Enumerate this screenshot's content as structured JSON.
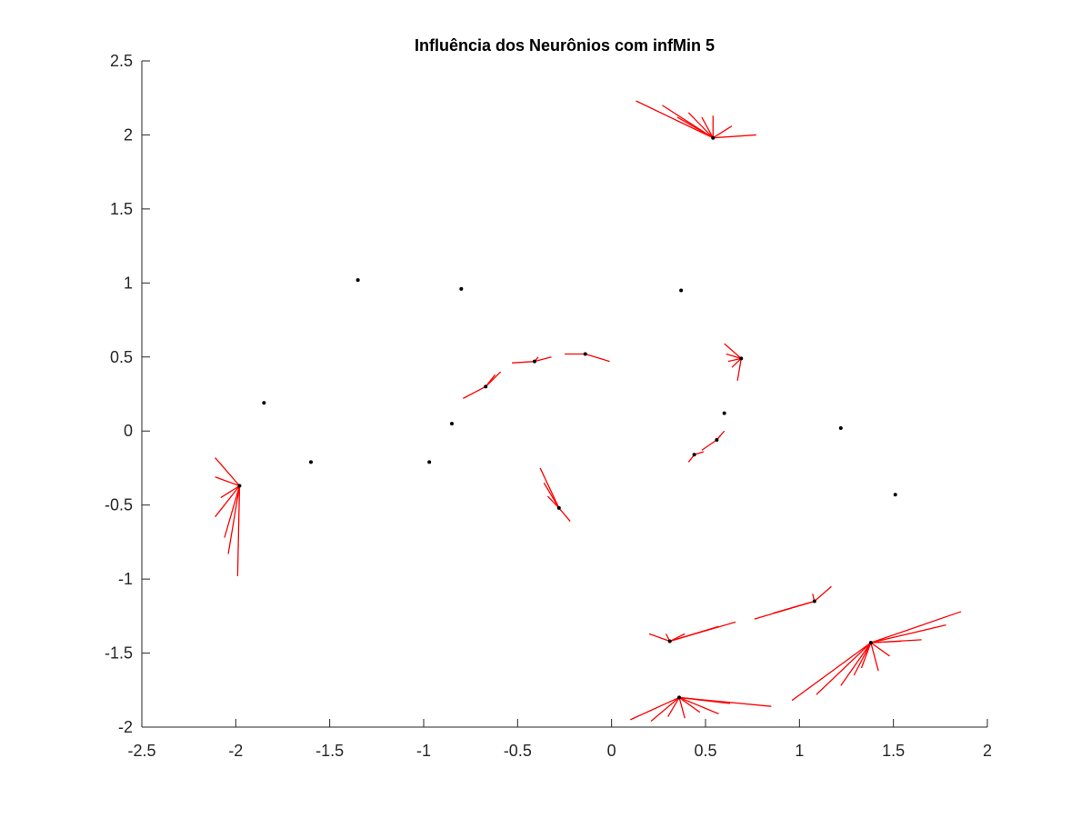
{
  "chart_data": {
    "type": "scatter",
    "title": "Influência dos Neurônios com infMin 5",
    "xlim": [
      -2.5,
      2
    ],
    "ylim": [
      -2,
      2.5
    ],
    "xticks": [
      "-2.5",
      "-2",
      "-1.5",
      "-1",
      "-0.5",
      "0",
      "0.5",
      "1",
      "1.5",
      "2"
    ],
    "yticks": [
      "2.5",
      "2",
      "1.5",
      "1",
      "0.5",
      "0",
      "-0.5",
      "-1",
      "-1.5",
      "-2"
    ],
    "grid": false,
    "colors": {
      "neuron": "#000000",
      "influence": "#ff0000",
      "axis": "#262626"
    },
    "neurons": [
      {
        "x": 0.54,
        "y": 1.98
      },
      {
        "x": -1.35,
        "y": 1.02
      },
      {
        "x": -0.8,
        "y": 0.96
      },
      {
        "x": 0.37,
        "y": 0.95
      },
      {
        "x": -0.41,
        "y": 0.47
      },
      {
        "x": -0.14,
        "y": 0.52
      },
      {
        "x": 0.69,
        "y": 0.49
      },
      {
        "x": -0.67,
        "y": 0.3
      },
      {
        "x": -1.85,
        "y": 0.19
      },
      {
        "x": 0.6,
        "y": 0.12
      },
      {
        "x": -0.85,
        "y": 0.05
      },
      {
        "x": 1.22,
        "y": 0.02
      },
      {
        "x": 0.56,
        "y": -0.06
      },
      {
        "x": 0.44,
        "y": -0.16
      },
      {
        "x": -1.6,
        "y": -0.21
      },
      {
        "x": -0.97,
        "y": -0.21
      },
      {
        "x": -1.98,
        "y": -0.37
      },
      {
        "x": -0.28,
        "y": -0.52
      },
      {
        "x": 1.51,
        "y": -0.43
      },
      {
        "x": 1.08,
        "y": -1.15
      },
      {
        "x": 0.31,
        "y": -1.42
      },
      {
        "x": 1.38,
        "y": -1.43
      },
      {
        "x": 0.36,
        "y": -1.8
      }
    ],
    "influence_groups": [
      {
        "center": {
          "x": 0.54,
          "y": 1.98
        },
        "ends": [
          [
            0.13,
            2.23
          ],
          [
            0.27,
            2.2
          ],
          [
            0.35,
            2.12
          ],
          [
            0.41,
            2.15
          ],
          [
            0.48,
            2.12
          ],
          [
            0.54,
            2.13
          ],
          [
            0.64,
            2.06
          ],
          [
            0.77,
            2.0
          ]
        ]
      },
      {
        "center": {
          "x": -1.98,
          "y": -0.37
        },
        "ends": [
          [
            -2.11,
            -0.18
          ],
          [
            -2.11,
            -0.31
          ],
          [
            -2.08,
            -0.45
          ],
          [
            -2.11,
            -0.58
          ],
          [
            -2.06,
            -0.72
          ],
          [
            -2.04,
            -0.83
          ],
          [
            -1.99,
            -0.98
          ]
        ]
      },
      {
        "center": {
          "x": -0.67,
          "y": 0.3
        },
        "ends": [
          [
            -0.79,
            0.22
          ],
          [
            -0.59,
            0.4
          ],
          [
            -0.62,
            0.38
          ]
        ]
      },
      {
        "center": {
          "x": -0.41,
          "y": 0.47
        },
        "ends": [
          [
            -0.53,
            0.46
          ],
          [
            -0.32,
            0.5
          ],
          [
            -0.39,
            0.5
          ]
        ]
      },
      {
        "center": {
          "x": -0.14,
          "y": 0.52
        },
        "ends": [
          [
            -0.25,
            0.52
          ],
          [
            -0.01,
            0.47
          ]
        ]
      },
      {
        "center": {
          "x": 0.69,
          "y": 0.49
        },
        "ends": [
          [
            0.6,
            0.59
          ],
          [
            0.61,
            0.52
          ],
          [
            0.62,
            0.47
          ],
          [
            0.64,
            0.43
          ],
          [
            0.67,
            0.34
          ]
        ]
      },
      {
        "center": {
          "x": 0.56,
          "y": -0.06
        },
        "ends": [
          [
            0.48,
            -0.13
          ],
          [
            0.6,
            0.0
          ],
          [
            0.58,
            -0.03
          ]
        ]
      },
      {
        "center": {
          "x": 0.44,
          "y": -0.16
        },
        "ends": [
          [
            0.41,
            -0.21
          ],
          [
            0.49,
            -0.14
          ]
        ]
      },
      {
        "center": {
          "x": -0.28,
          "y": -0.52
        },
        "ends": [
          [
            -0.38,
            -0.25
          ],
          [
            -0.36,
            -0.35
          ],
          [
            -0.34,
            -0.44
          ],
          [
            -0.22,
            -0.61
          ]
        ]
      },
      {
        "center": {
          "x": 1.08,
          "y": -1.15
        },
        "ends": [
          [
            0.76,
            -1.27
          ],
          [
            0.86,
            -1.23
          ],
          [
            1.07,
            -1.1
          ],
          [
            1.17,
            -1.05
          ]
        ]
      },
      {
        "center": {
          "x": 0.31,
          "y": -1.42
        },
        "ends": [
          [
            0.2,
            -1.37
          ],
          [
            0.29,
            -1.37
          ],
          [
            0.39,
            -1.37
          ],
          [
            0.57,
            -1.32
          ],
          [
            0.66,
            -1.29
          ]
        ]
      },
      {
        "center": {
          "x": 1.38,
          "y": -1.43
        },
        "ends": [
          [
            0.96,
            -1.82
          ],
          [
            1.09,
            -1.78
          ],
          [
            1.22,
            -1.72
          ],
          [
            1.29,
            -1.65
          ],
          [
            1.33,
            -1.6
          ],
          [
            1.42,
            -1.62
          ],
          [
            1.48,
            -1.52
          ],
          [
            1.54,
            -1.42
          ],
          [
            1.65,
            -1.41
          ],
          [
            1.78,
            -1.31
          ],
          [
            1.86,
            -1.22
          ]
        ]
      },
      {
        "center": {
          "x": 0.36,
          "y": -1.8
        },
        "ends": [
          [
            0.1,
            -1.95
          ],
          [
            0.21,
            -1.96
          ],
          [
            0.3,
            -1.93
          ],
          [
            0.39,
            -1.94
          ],
          [
            0.47,
            -1.9
          ],
          [
            0.57,
            -1.91
          ],
          [
            0.63,
            -1.84
          ],
          [
            0.85,
            -1.86
          ]
        ]
      }
    ]
  }
}
